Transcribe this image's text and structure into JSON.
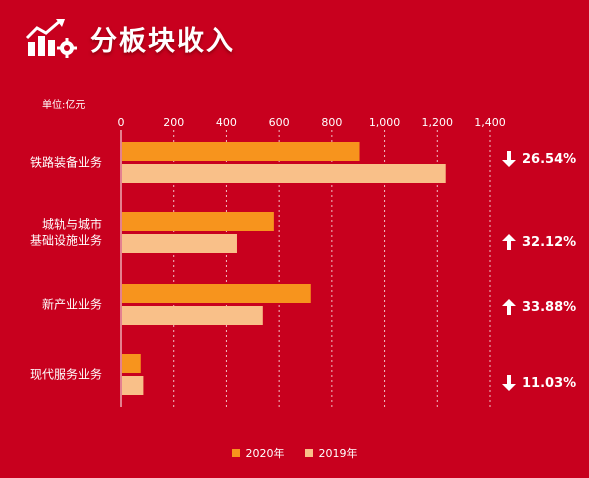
{
  "header": {
    "title": "分板块收入",
    "icon": "growth-chart-gear-icon"
  },
  "unit_label": "单位:亿元",
  "colors": {
    "background": "#c8001e",
    "series_2020": "#f7941d",
    "series_2019": "#f9c089"
  },
  "chart_data": {
    "type": "bar",
    "orientation": "horizontal",
    "categories": [
      "铁路装备业务",
      "城轨与城市\n基础设施业务",
      "新产业业务",
      "现代服务业务"
    ],
    "series": [
      {
        "name": "2020年",
        "values": [
          905,
          580,
          720,
          75
        ]
      },
      {
        "name": "2019年",
        "values": [
          1232,
          440,
          538,
          85
        ]
      }
    ],
    "xlim": [
      0,
      1400
    ],
    "ticks": [
      "0",
      "200",
      "400",
      "600",
      "800",
      "1,000",
      "1,200",
      "1,400"
    ],
    "grid": "vertical dashed",
    "legend_position": "bottom"
  },
  "changes": [
    {
      "direction": "down",
      "text": "26.54%"
    },
    {
      "direction": "up",
      "text": "32.12%"
    },
    {
      "direction": "up",
      "text": "33.88%"
    },
    {
      "direction": "down",
      "text": "11.03%"
    }
  ]
}
